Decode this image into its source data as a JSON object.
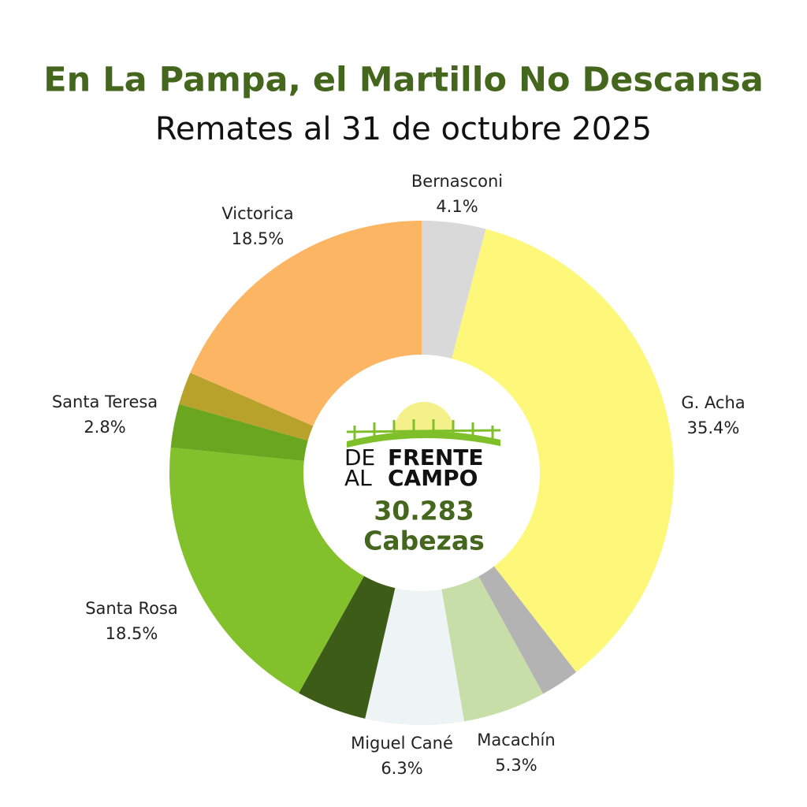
{
  "chart_data": {
    "type": "donut",
    "title": "En La Pampa, el Martillo No Descansa",
    "subtitle": "Remates al 31 de octubre 2025",
    "categories": [
      "Bernasconi",
      "G. Acha",
      null,
      "Macachín",
      "Miguel Cané",
      null,
      "Santa Rosa",
      "Santa Teresa",
      null,
      "Victorica"
    ],
    "values": [
      4.1,
      35.4,
      2.5,
      5.3,
      6.3,
      4.5,
      18.5,
      2.8,
      2.1,
      18.5
    ],
    "value_labels": [
      "4.1%",
      "35.4%",
      null,
      "5.3%",
      "6.3%",
      null,
      "18.5%",
      "2.8%",
      null,
      "18.5%"
    ],
    "colors": [
      "#d9d9d9",
      "#fdf87a",
      "#b3b3b3",
      "#c8dea8",
      "#eef3f6",
      "#3d5c17",
      "#82c12b",
      "#6aa61f",
      "#b8a22c",
      "#fcb663"
    ],
    "center": {
      "logo_line1": [
        "DE",
        "FRENTE"
      ],
      "logo_line2": [
        "AL",
        "CAMPO"
      ],
      "total": "30.283",
      "unit": "Cabezas"
    }
  }
}
